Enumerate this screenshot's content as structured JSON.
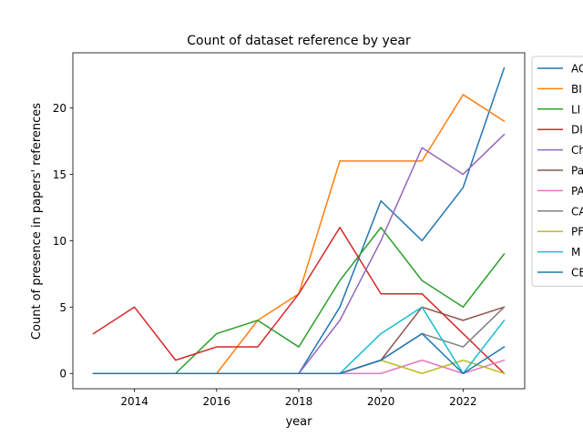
{
  "chart_data": {
    "type": "line",
    "title": "Count of dataset reference by year",
    "xlabel": "year",
    "ylabel": "Count of presence in papers' references",
    "xlim": [
      2012.5,
      2023.5
    ],
    "ylim": [
      -1.15,
      24.15
    ],
    "x": [
      2013,
      2014,
      2015,
      2016,
      2017,
      2018,
      2019,
      2020,
      2021,
      2022,
      2023
    ],
    "x_ticks": [
      2014,
      2016,
      2018,
      2020,
      2022
    ],
    "y_ticks": [
      0,
      5,
      10,
      15,
      20
    ],
    "grid": false,
    "legend_placement": "outside right, top",
    "series": [
      {
        "name": "AC",
        "color": "#1f77b4",
        "values": [
          0,
          0,
          0,
          0,
          0,
          0,
          5,
          13,
          10,
          14,
          23
        ]
      },
      {
        "name": "BI",
        "color": "#ff7f0e",
        "values": [
          0,
          0,
          0,
          0,
          4,
          6,
          16,
          16,
          16,
          21,
          19
        ]
      },
      {
        "name": "LI",
        "color": "#2ca02c",
        "values": [
          0,
          0,
          0,
          3,
          4,
          2,
          7,
          11,
          7,
          5,
          9
        ]
      },
      {
        "name": "DI",
        "color": "#d62728",
        "values": [
          3,
          5,
          1,
          2,
          2,
          6,
          11,
          6,
          6,
          3,
          0
        ]
      },
      {
        "name": "Ch",
        "color": "#9467bd",
        "values": [
          0,
          0,
          0,
          0,
          0,
          0,
          4,
          10,
          17,
          15,
          18
        ]
      },
      {
        "name": "Pa",
        "color": "#8c564b",
        "values": [
          0,
          0,
          0,
          0,
          0,
          0,
          0,
          1,
          5,
          4,
          5
        ]
      },
      {
        "name": "PA",
        "color": "#e377c2",
        "values": [
          0,
          0,
          0,
          0,
          0,
          0,
          0,
          0,
          1,
          0,
          1
        ]
      },
      {
        "name": "CA",
        "color": "#7f7f7f",
        "values": [
          0,
          0,
          0,
          0,
          0,
          0,
          0,
          1,
          3,
          2,
          5
        ]
      },
      {
        "name": "PF",
        "color": "#bcbd22",
        "values": [
          0,
          0,
          0,
          0,
          0,
          0,
          0,
          1,
          0,
          1,
          0
        ]
      },
      {
        "name": "M",
        "color": "#17becf",
        "values": [
          0,
          0,
          0,
          0,
          0,
          0,
          0,
          3,
          5,
          0,
          4
        ]
      },
      {
        "name": "CE",
        "color": "#1f77b4",
        "values": [
          0,
          0,
          0,
          0,
          0,
          0,
          0,
          1,
          3,
          0,
          2
        ]
      }
    ]
  }
}
